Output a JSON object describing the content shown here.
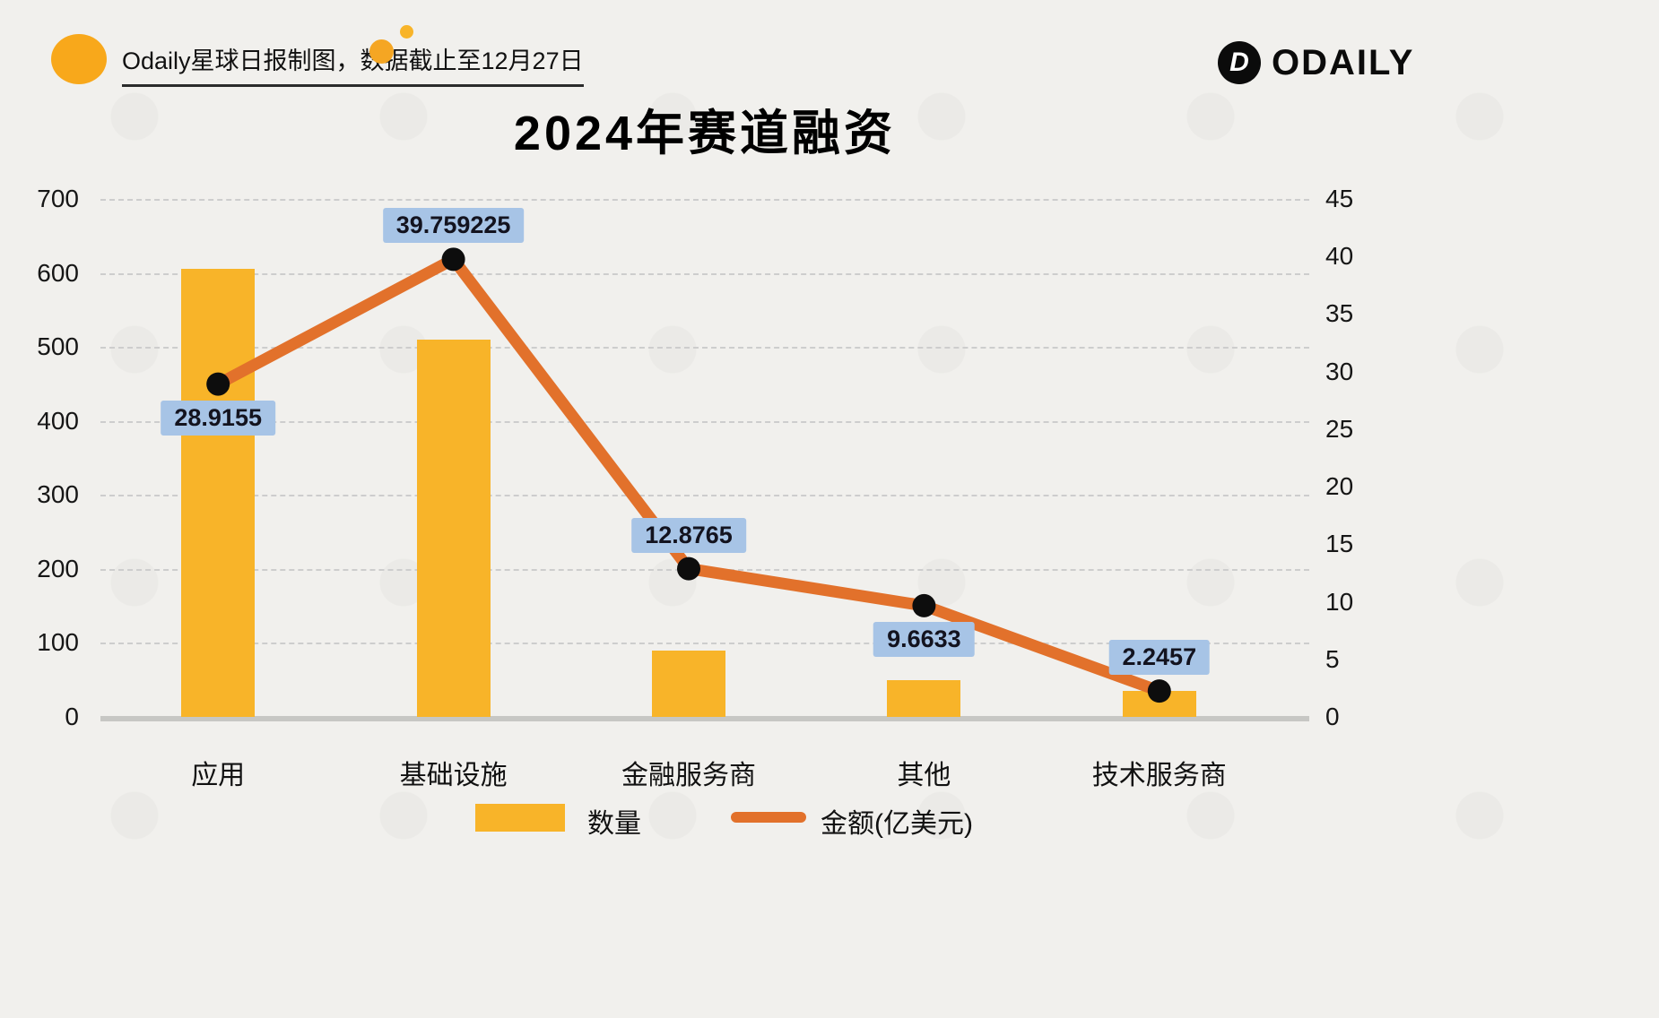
{
  "header": {
    "caption": "Odaily星球日报制图，数据截止至12月27日",
    "brand_name": "ODAILY",
    "brand_glyph": "D"
  },
  "chart_data": {
    "type": "bar+line",
    "title": "2024年赛道融资",
    "categories": [
      "应用",
      "基础设施",
      "金融服务商",
      "其他",
      "技术服务商"
    ],
    "series": [
      {
        "name": "数量",
        "type": "bar",
        "axis": "left",
        "color": "#F8B429",
        "values": [
          605,
          510,
          90,
          50,
          35
        ]
      },
      {
        "name": "金额(亿美元)",
        "type": "line",
        "axis": "right",
        "color": "#E2712B",
        "point_color": "#0d0d0d",
        "values": [
          28.9155,
          39.759225,
          12.8765,
          9.6633,
          2.2457
        ],
        "point_labels": [
          "28.9155",
          "39.759225",
          "12.8765",
          "9.6633",
          "2.2457"
        ],
        "point_label_positions": [
          "below",
          "above",
          "above",
          "below",
          "above"
        ],
        "point_label_bg": "#A7C4E6"
      }
    ],
    "left_axis": {
      "min": 0,
      "max": 700,
      "step": 100,
      "ticks": [
        "0",
        "100",
        "200",
        "300",
        "400",
        "500",
        "600",
        "700"
      ]
    },
    "right_axis": {
      "min": 0,
      "max": 45,
      "step": 5,
      "ticks": [
        "0",
        "5",
        "10",
        "15",
        "20",
        "25",
        "30",
        "35",
        "40",
        "45"
      ]
    },
    "grid": "dashed horizontal",
    "legend": {
      "position": "bottom",
      "items": [
        "数量",
        "金额(亿美元)"
      ]
    }
  }
}
